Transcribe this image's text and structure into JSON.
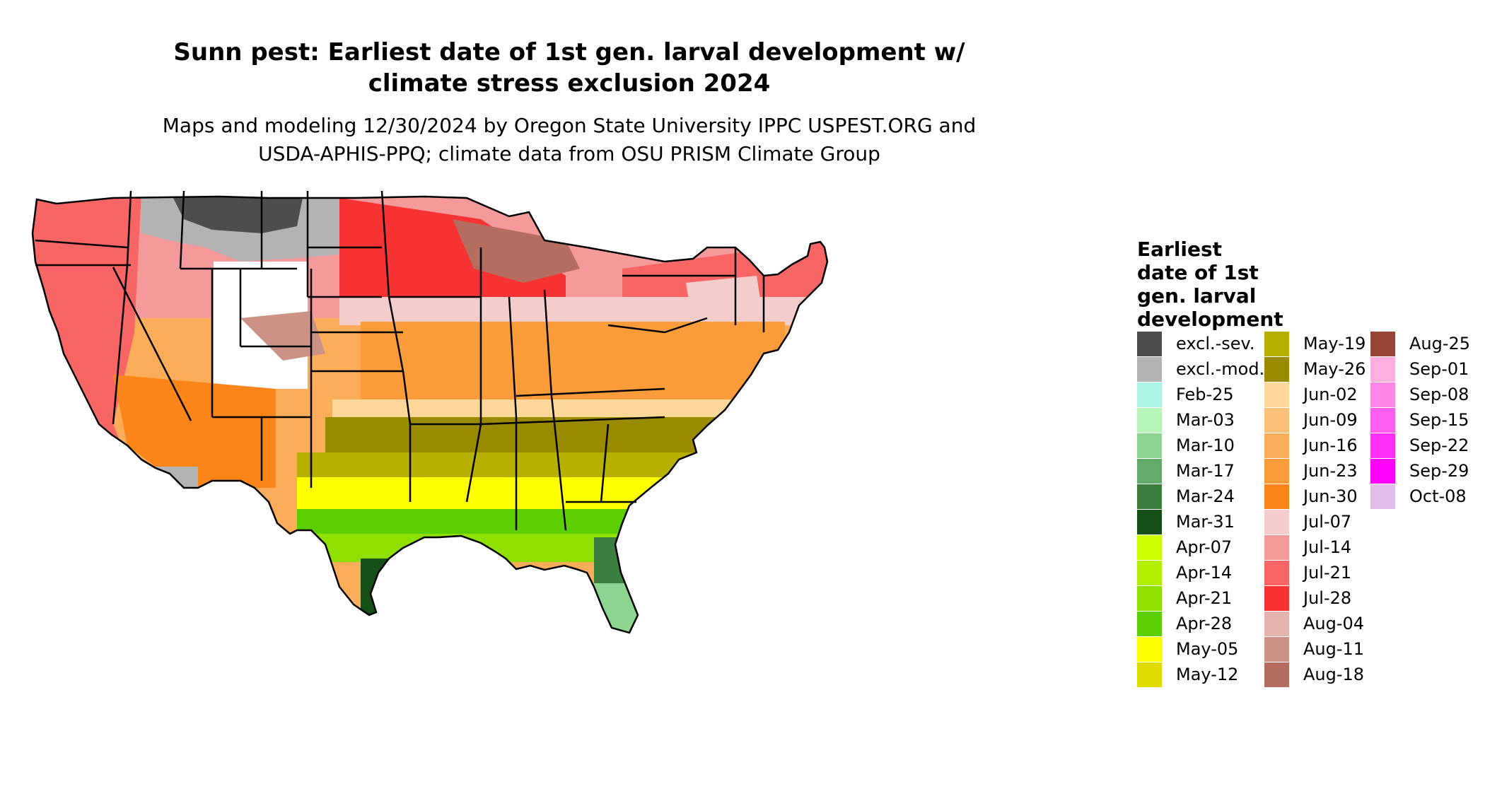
{
  "title_line1": "Sunn pest: Earliest date of 1st gen. larval development w/",
  "title_line2": "climate stress exclusion 2024",
  "subtitle_line1": "Maps and modeling 12/30/2024 by Oregon State University IPPC USPEST.ORG and",
  "subtitle_line2": "USDA-APHIS-PPQ; climate data from OSU PRISM Climate Group",
  "legend": {
    "title_lines": [
      "Earliest",
      "date of 1st",
      "gen. larval",
      "development"
    ],
    "items": [
      {
        "label": "excl.-sev.",
        "color": "#4d4d4d"
      },
      {
        "label": "excl.-mod.",
        "color": "#b3b3b3"
      },
      {
        "label": "Feb-25",
        "color": "#aaf5e6"
      },
      {
        "label": "Mar-03",
        "color": "#b8f5b8"
      },
      {
        "label": "Mar-10",
        "color": "#8cd48f"
      },
      {
        "label": "Mar-17",
        "color": "#63aa6a"
      },
      {
        "label": "Mar-24",
        "color": "#3c7e3e"
      },
      {
        "label": "Mar-31",
        "color": "#154f17"
      },
      {
        "label": "Apr-07",
        "color": "#ccff00"
      },
      {
        "label": "Apr-14",
        "color": "#b2ee00"
      },
      {
        "label": "Apr-21",
        "color": "#8fe000"
      },
      {
        "label": "Apr-28",
        "color": "#5ccf00"
      },
      {
        "label": "May-05",
        "color": "#ffff00"
      },
      {
        "label": "May-12",
        "color": "#e0dc00"
      },
      {
        "label": "May-19",
        "color": "#b8b000"
      },
      {
        "label": "May-26",
        "color": "#9a8a00"
      },
      {
        "label": "Jun-02",
        "color": "#fdd79a"
      },
      {
        "label": "Jun-09",
        "color": "#fcc078"
      },
      {
        "label": "Jun-16",
        "color": "#fcad5a"
      },
      {
        "label": "Jun-23",
        "color": "#fb9b3a"
      },
      {
        "label": "Jun-30",
        "color": "#fb8518"
      },
      {
        "label": "Jul-07",
        "color": "#f5cccc"
      },
      {
        "label": "Jul-14",
        "color": "#f59a9a"
      },
      {
        "label": "Jul-21",
        "color": "#f76565"
      },
      {
        "label": "Jul-28",
        "color": "#f73232"
      },
      {
        "label": "Aug-04",
        "color": "#e6b4ae"
      },
      {
        "label": "Aug-11",
        "color": "#cd9286"
      },
      {
        "label": "Aug-18",
        "color": "#b46d5f"
      },
      {
        "label": "Aug-25",
        "color": "#974534"
      },
      {
        "label": "Sep-01",
        "color": "#ffaee0"
      },
      {
        "label": "Sep-08",
        "color": "#ff86e6"
      },
      {
        "label": "Sep-15",
        "color": "#ff5ef0"
      },
      {
        "label": "Sep-22",
        "color": "#ff30f6"
      },
      {
        "label": "Sep-29",
        "color": "#ff00ff"
      },
      {
        "label": "Oct-08",
        "color": "#e0bde6"
      }
    ]
  }
}
